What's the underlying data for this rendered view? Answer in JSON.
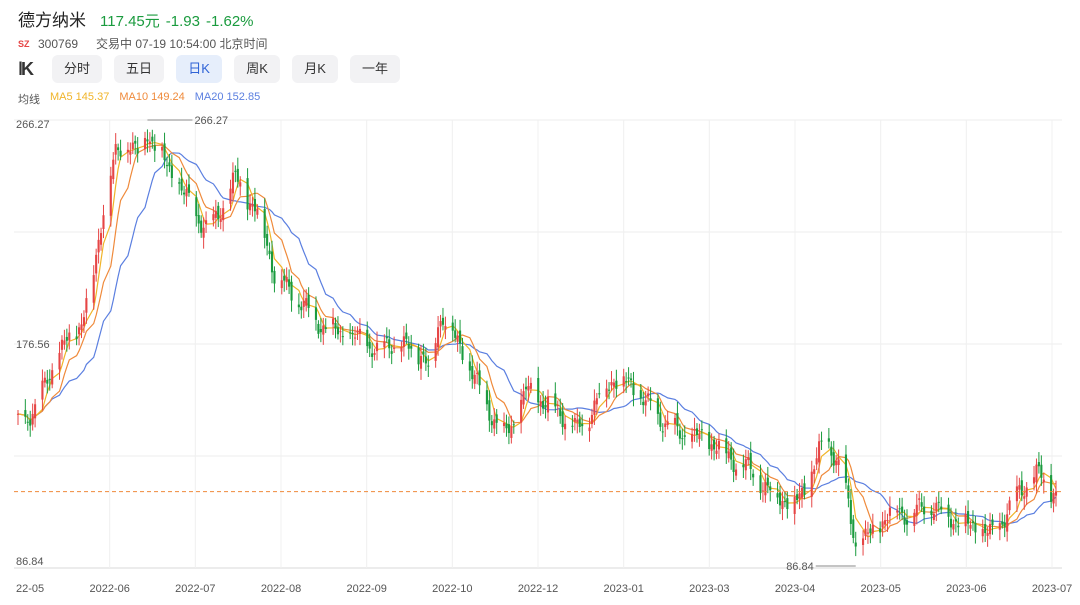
{
  "header": {
    "stock_name": "德方纳米",
    "price": "117.45元",
    "change": "-1.93",
    "change_pct": "-1.62%",
    "market_badge": "SZ",
    "code": "300769",
    "status": "交易中 07-19 10:54:00 北京时间"
  },
  "toolbar": {
    "icon": "candlestick-icon",
    "tabs": [
      {
        "label": "分时",
        "active": false
      },
      {
        "label": "五日",
        "active": false
      },
      {
        "label": "日K",
        "active": true
      },
      {
        "label": "周K",
        "active": false
      },
      {
        "label": "月K",
        "active": false
      },
      {
        "label": "一年",
        "active": false
      }
    ]
  },
  "ma": {
    "label": "均线",
    "ma5": "MA5 145.37",
    "ma10": "MA10 149.24",
    "ma20": "MA20 152.85"
  },
  "colors": {
    "up": "#e64545",
    "down": "#1a9b3e",
    "ma5": "#f0b429",
    "ma10": "#ef8a3b",
    "ma20": "#5b7fe0",
    "price_line": "#ef8a3b",
    "active_tab": "#2f63d6"
  },
  "chart_data": {
    "type": "candlestick",
    "y_labels": [
      "266.27",
      "176.56",
      "86.84"
    ],
    "ylim": [
      86.84,
      266.27
    ],
    "x_labels": [
      "22-05",
      "2022-06",
      "2022-07",
      "2022-08",
      "2022-09",
      "2022-10",
      "2022-12",
      "2023-01",
      "2023-03",
      "2023-04",
      "2023-05",
      "2023-06",
      "2023-07"
    ],
    "max_marker": "266.27",
    "min_marker": "86.84",
    "current_price": 117.45,
    "close_path": [
      [
        "2022-05-20",
        145
      ],
      [
        "2022-05-27",
        150
      ],
      [
        "2022-06-01",
        163
      ],
      [
        "2022-06-08",
        176
      ],
      [
        "2022-06-15",
        185
      ],
      [
        "2022-06-20",
        205
      ],
      [
        "2022-06-24",
        232
      ],
      [
        "2022-06-29",
        252
      ],
      [
        "2022-07-04",
        258
      ],
      [
        "2022-07-08",
        252
      ],
      [
        "2022-07-12",
        262
      ],
      [
        "2022-07-15",
        256
      ],
      [
        "2022-07-20",
        248
      ],
      [
        "2022-07-26",
        238
      ],
      [
        "2022-08-01",
        228
      ],
      [
        "2022-08-06",
        222
      ],
      [
        "2022-08-12",
        232
      ],
      [
        "2022-08-17",
        243
      ],
      [
        "2022-08-22",
        235
      ],
      [
        "2022-08-27",
        228
      ],
      [
        "2022-09-02",
        205
      ],
      [
        "2022-09-08",
        198
      ],
      [
        "2022-09-14",
        192
      ],
      [
        "2022-09-20",
        185
      ],
      [
        "2022-09-26",
        182
      ],
      [
        "2022-10-02",
        180
      ],
      [
        "2022-10-08",
        178
      ],
      [
        "2022-10-14",
        174
      ],
      [
        "2022-10-20",
        177
      ],
      [
        "2022-10-26",
        175
      ],
      [
        "2022-11-01",
        173
      ],
      [
        "2022-11-05",
        165
      ],
      [
        "2022-11-08",
        185
      ],
      [
        "2022-11-11",
        188
      ],
      [
        "2022-11-15",
        178
      ],
      [
        "2022-11-20",
        170
      ],
      [
        "2022-11-25",
        158
      ],
      [
        "2022-11-30",
        148
      ],
      [
        "2022-12-05",
        140
      ],
      [
        "2022-12-09",
        145
      ],
      [
        "2022-12-14",
        158
      ],
      [
        "2022-12-19",
        155
      ],
      [
        "2022-12-24",
        152
      ],
      [
        "2022-12-29",
        148
      ],
      [
        "2023-01-04",
        142
      ],
      [
        "2023-01-09",
        148
      ],
      [
        "2023-01-14",
        158
      ],
      [
        "2023-01-19",
        163
      ],
      [
        "2023-01-26",
        160
      ],
      [
        "2023-02-02",
        152
      ],
      [
        "2023-02-09",
        145
      ],
      [
        "2023-02-16",
        140
      ],
      [
        "2023-02-23",
        139
      ],
      [
        "2023-03-02",
        136
      ],
      [
        "2023-03-09",
        130
      ],
      [
        "2023-03-16",
        126
      ],
      [
        "2023-03-23",
        118
      ],
      [
        "2023-03-29",
        115
      ],
      [
        "2023-04-03",
        112
      ],
      [
        "2023-04-08",
        120
      ],
      [
        "2023-04-13",
        133
      ],
      [
        "2023-04-17",
        137
      ],
      [
        "2023-04-22",
        126
      ],
      [
        "2023-04-25",
        112
      ],
      [
        "2023-04-28",
        96
      ],
      [
        "2023-05-04",
        100
      ],
      [
        "2023-05-09",
        106
      ],
      [
        "2023-05-14",
        111
      ],
      [
        "2023-05-19",
        108
      ],
      [
        "2023-05-24",
        110
      ],
      [
        "2023-05-29",
        112
      ],
      [
        "2023-06-03",
        109
      ],
      [
        "2023-06-08",
        106
      ],
      [
        "2023-06-13",
        104
      ],
      [
        "2023-06-18",
        102
      ],
      [
        "2023-06-23",
        100
      ],
      [
        "2023-06-28",
        108
      ],
      [
        "2023-07-03",
        116
      ],
      [
        "2023-07-07",
        120
      ],
      [
        "2023-07-12",
        125
      ],
      [
        "2023-07-15",
        118
      ],
      [
        "2023-07-19",
        117.45
      ]
    ]
  }
}
